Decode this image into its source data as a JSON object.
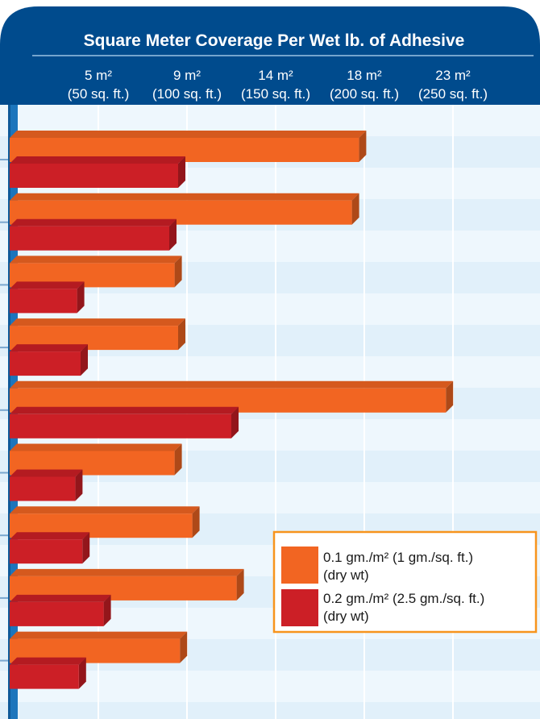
{
  "chart_data": {
    "type": "bar",
    "orientation": "horizontal",
    "title": "Square Meter Coverage Per Wet lb. of Adhesive",
    "xlabel": "",
    "ylabel": "",
    "x_unit": "sq. ft.",
    "xlim": [
      0,
      250
    ],
    "ticks": [
      {
        "value": 50,
        "metric": "5 m²",
        "imperial": "(50 sq. ft.)"
      },
      {
        "value": 100,
        "metric": "9 m²",
        "imperial": "(100 sq. ft.)"
      },
      {
        "value": 150,
        "metric": "14 m²",
        "imperial": "(150 sq. ft.)"
      },
      {
        "value": 200,
        "metric": "18 m²",
        "imperial": "(200 sq. ft.)"
      },
      {
        "value": 250,
        "metric": "23 m²",
        "imperial": "(250 sq. ft.)"
      }
    ],
    "categories": [
      "",
      "",
      "",
      "",
      "",
      "",
      "",
      "",
      ""
    ],
    "series": [
      {
        "name_line1": "0.1 gm./m² (1 gm./sq. ft.)",
        "name_line2": "(dry wt)",
        "color": "#f26522",
        "values": [
          197,
          193,
          93,
          95,
          246,
          93,
          103,
          128,
          96
        ]
      },
      {
        "name_line1": "0.2 gm./m² (2.5 gm./sq. ft.)",
        "name_line2": "(dry wt)",
        "color": "#cc1f26",
        "values": [
          95,
          90,
          38,
          40,
          125,
          37,
          41,
          53,
          39
        ]
      }
    ],
    "grid": true,
    "legend_position": "bottom-right",
    "colors": {
      "header": "#004b8d",
      "band_light": "#eef7fd",
      "band_dark": "#e1f0fa",
      "axis": "#1c75bc",
      "legend_border": "#f7941d"
    }
  }
}
